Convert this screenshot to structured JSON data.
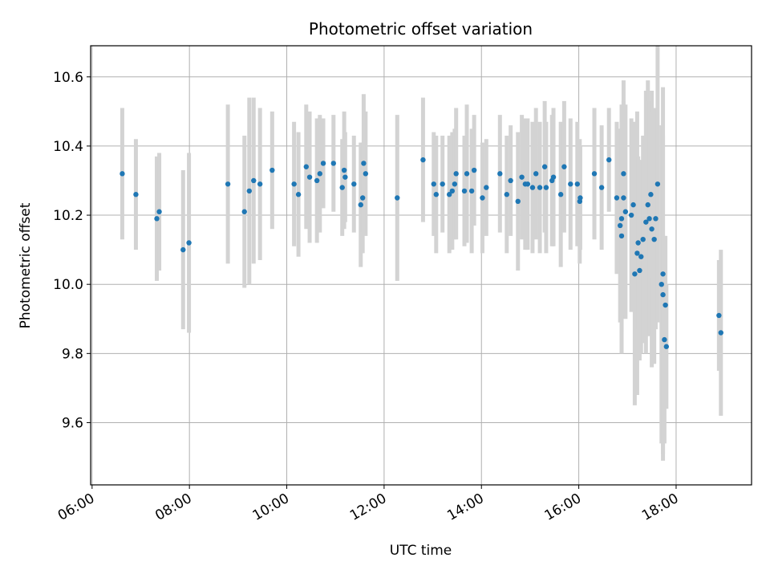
{
  "chart_data": {
    "type": "scatter",
    "title": "Photometric offset variation",
    "xlabel": "UTC time",
    "ylabel": "Photometric offset",
    "x_unit": "hours UTC",
    "xlim": [
      5.97,
      19.55
    ],
    "ylim": [
      9.42,
      10.69
    ],
    "xticks": [
      6,
      8,
      10,
      12,
      14,
      16,
      18
    ],
    "xtick_labels": [
      "06:00",
      "08:00",
      "10:00",
      "12:00",
      "14:00",
      "16:00",
      "18:00"
    ],
    "yticks": [
      9.6,
      9.8,
      10.0,
      10.2,
      10.4,
      10.6
    ],
    "ytick_labels": [
      "9.6",
      "9.8",
      "10.0",
      "10.2",
      "10.4",
      "10.6"
    ],
    "grid": true,
    "colors": {
      "marker": "#1f77b4",
      "errorbar": "#d3d3d3"
    },
    "series": [
      {
        "x": [
          6.62,
          6.9,
          7.33,
          7.38,
          7.87,
          7.99,
          8.79,
          9.13,
          9.23,
          9.32,
          9.45,
          9.7,
          10.15,
          10.24,
          10.4,
          10.47,
          10.62,
          10.68,
          10.75,
          10.96,
          11.14,
          11.18,
          11.2,
          11.38,
          11.52,
          11.56,
          11.62,
          11.58,
          12.27,
          12.8,
          13.02,
          13.07,
          13.2,
          13.34,
          13.4,
          13.45,
          13.48,
          13.65,
          13.7,
          13.8,
          13.85,
          14.02,
          14.1,
          14.38,
          14.52,
          14.6,
          14.75,
          14.83,
          14.9,
          14.95,
          15.05,
          15.12,
          15.2,
          15.3,
          15.33,
          15.45,
          15.48,
          15.63,
          15.7,
          15.83,
          15.97,
          16.03,
          16.02,
          16.32,
          16.47,
          16.62,
          16.78,
          16.85,
          16.88,
          16.88,
          16.92,
          16.92,
          16.96,
          17.08,
          17.12,
          17.15,
          17.2,
          17.22,
          17.25,
          17.28,
          17.32,
          17.38,
          17.42,
          17.45,
          17.5,
          17.48,
          17.55,
          17.58,
          17.62,
          17.7,
          17.73,
          17.73,
          17.78,
          17.8,
          17.76,
          18.88,
          18.92
        ],
        "y": [
          10.32,
          10.26,
          10.19,
          10.21,
          10.1,
          10.12,
          10.29,
          10.21,
          10.27,
          10.3,
          10.29,
          10.33,
          10.29,
          10.26,
          10.34,
          10.31,
          10.3,
          10.32,
          10.35,
          10.35,
          10.28,
          10.33,
          10.31,
          10.29,
          10.23,
          10.25,
          10.32,
          10.35,
          10.25,
          10.36,
          10.29,
          10.26,
          10.29,
          10.26,
          10.27,
          10.29,
          10.32,
          10.27,
          10.32,
          10.27,
          10.33,
          10.25,
          10.28,
          10.32,
          10.26,
          10.3,
          10.24,
          10.31,
          10.29,
          10.29,
          10.28,
          10.32,
          10.28,
          10.34,
          10.28,
          10.3,
          10.31,
          10.26,
          10.34,
          10.29,
          10.29,
          10.25,
          10.24,
          10.32,
          10.28,
          10.36,
          10.25,
          10.17,
          10.14,
          10.19,
          10.32,
          10.25,
          10.21,
          10.2,
          10.23,
          10.03,
          10.09,
          10.12,
          10.04,
          10.08,
          10.13,
          10.18,
          10.23,
          10.19,
          10.16,
          10.26,
          10.13,
          10.19,
          10.29,
          10.0,
          10.03,
          9.97,
          9.94,
          9.82,
          9.84,
          9.91,
          9.86
        ],
        "yerr": [
          0.19,
          0.16,
          0.18,
          0.17,
          0.23,
          0.26,
          0.23,
          0.22,
          0.27,
          0.24,
          0.22,
          0.17,
          0.18,
          0.18,
          0.18,
          0.19,
          0.18,
          0.17,
          0.13,
          0.14,
          0.14,
          0.17,
          0.13,
          0.14,
          0.18,
          0.16,
          0.18,
          0.2,
          0.24,
          0.18,
          0.15,
          0.17,
          0.14,
          0.17,
          0.17,
          0.16,
          0.19,
          0.16,
          0.2,
          0.18,
          0.16,
          0.16,
          0.14,
          0.17,
          0.17,
          0.16,
          0.2,
          0.18,
          0.19,
          0.19,
          0.19,
          0.19,
          0.19,
          0.19,
          0.19,
          0.19,
          0.2,
          0.21,
          0.19,
          0.19,
          0.18,
          0.15,
          0.18,
          0.19,
          0.18,
          0.15,
          0.22,
          0.28,
          0.34,
          0.33,
          0.21,
          0.34,
          0.31,
          0.28,
          0.24,
          0.38,
          0.41,
          0.25,
          0.26,
          0.28,
          0.3,
          0.38,
          0.36,
          0.34,
          0.4,
          0.24,
          0.36,
          0.32,
          0.4,
          0.46,
          0.54,
          0.46,
          0.2,
          0.18,
          0.3,
          0.16,
          0.24
        ]
      }
    ]
  }
}
